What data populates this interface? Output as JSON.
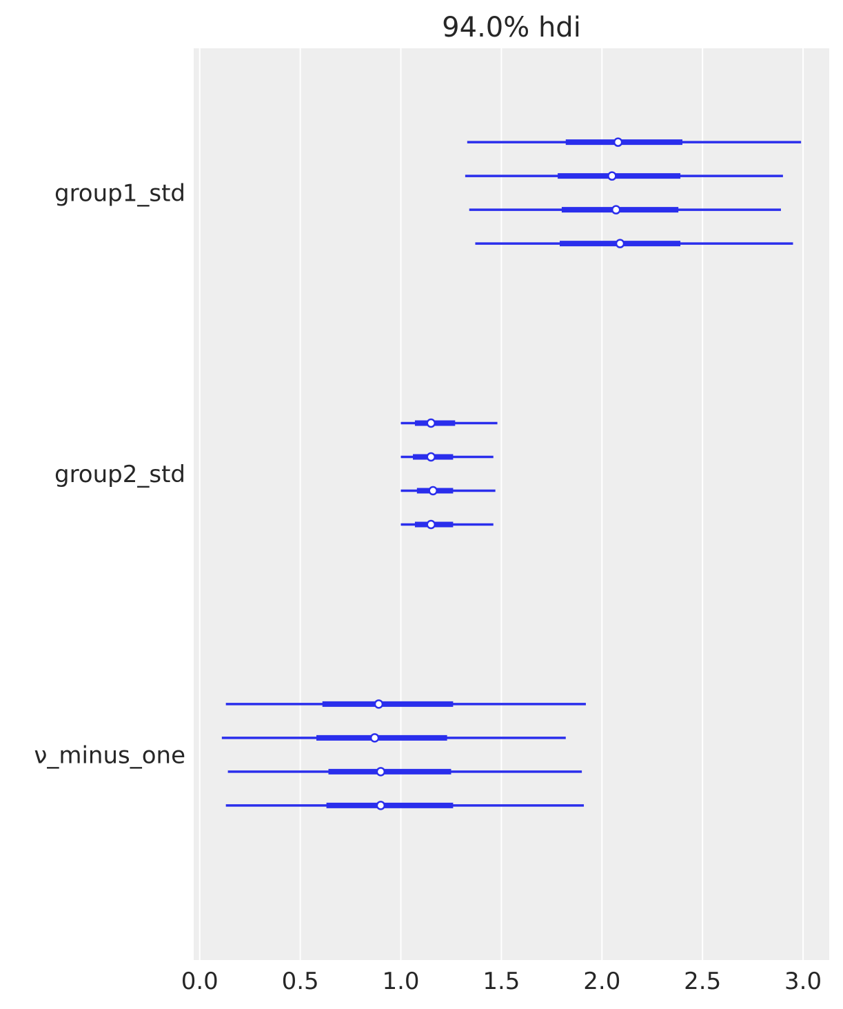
{
  "chart_data": {
    "type": "forest",
    "title": "94.0% hdi",
    "xlabel": "",
    "ylabel": "",
    "xlim": [
      -0.03,
      3.13
    ],
    "xticks": [
      0.0,
      0.5,
      1.0,
      1.5,
      2.0,
      2.5,
      3.0
    ],
    "xtick_labels": [
      "0.0",
      "0.5",
      "1.0",
      "1.5",
      "2.0",
      "2.5",
      "3.0"
    ],
    "grid": true,
    "colors": {
      "background": "#eeeeee",
      "grid": "#ffffff",
      "line": "#2a2eec",
      "marker_fill": "#ffffff"
    },
    "series": [
      {
        "name": "group1_std",
        "chains": [
          {
            "hdi_low": 1.33,
            "hdi_high": 2.99,
            "iqr_low": 1.82,
            "iqr_high": 2.4,
            "median": 2.08
          },
          {
            "hdi_low": 1.32,
            "hdi_high": 2.9,
            "iqr_low": 1.78,
            "iqr_high": 2.39,
            "median": 2.05
          },
          {
            "hdi_low": 1.34,
            "hdi_high": 2.89,
            "iqr_low": 1.8,
            "iqr_high": 2.38,
            "median": 2.07
          },
          {
            "hdi_low": 1.37,
            "hdi_high": 2.95,
            "iqr_low": 1.79,
            "iqr_high": 2.39,
            "median": 2.09
          }
        ]
      },
      {
        "name": "group2_std",
        "chains": [
          {
            "hdi_low": 1.0,
            "hdi_high": 1.48,
            "iqr_low": 1.07,
            "iqr_high": 1.27,
            "median": 1.15
          },
          {
            "hdi_low": 1.0,
            "hdi_high": 1.46,
            "iqr_low": 1.06,
            "iqr_high": 1.26,
            "median": 1.15
          },
          {
            "hdi_low": 1.0,
            "hdi_high": 1.47,
            "iqr_low": 1.08,
            "iqr_high": 1.26,
            "median": 1.16
          },
          {
            "hdi_low": 1.0,
            "hdi_high": 1.46,
            "iqr_low": 1.07,
            "iqr_high": 1.26,
            "median": 1.15
          }
        ]
      },
      {
        "name": "ν_minus_one",
        "chains": [
          {
            "hdi_low": 0.13,
            "hdi_high": 1.92,
            "iqr_low": 0.61,
            "iqr_high": 1.26,
            "median": 0.89
          },
          {
            "hdi_low": 0.11,
            "hdi_high": 1.82,
            "iqr_low": 0.58,
            "iqr_high": 1.23,
            "median": 0.87
          },
          {
            "hdi_low": 0.14,
            "hdi_high": 1.9,
            "iqr_low": 0.64,
            "iqr_high": 1.25,
            "median": 0.9
          },
          {
            "hdi_low": 0.13,
            "hdi_high": 1.91,
            "iqr_low": 0.63,
            "iqr_high": 1.26,
            "median": 0.9
          }
        ]
      }
    ]
  }
}
